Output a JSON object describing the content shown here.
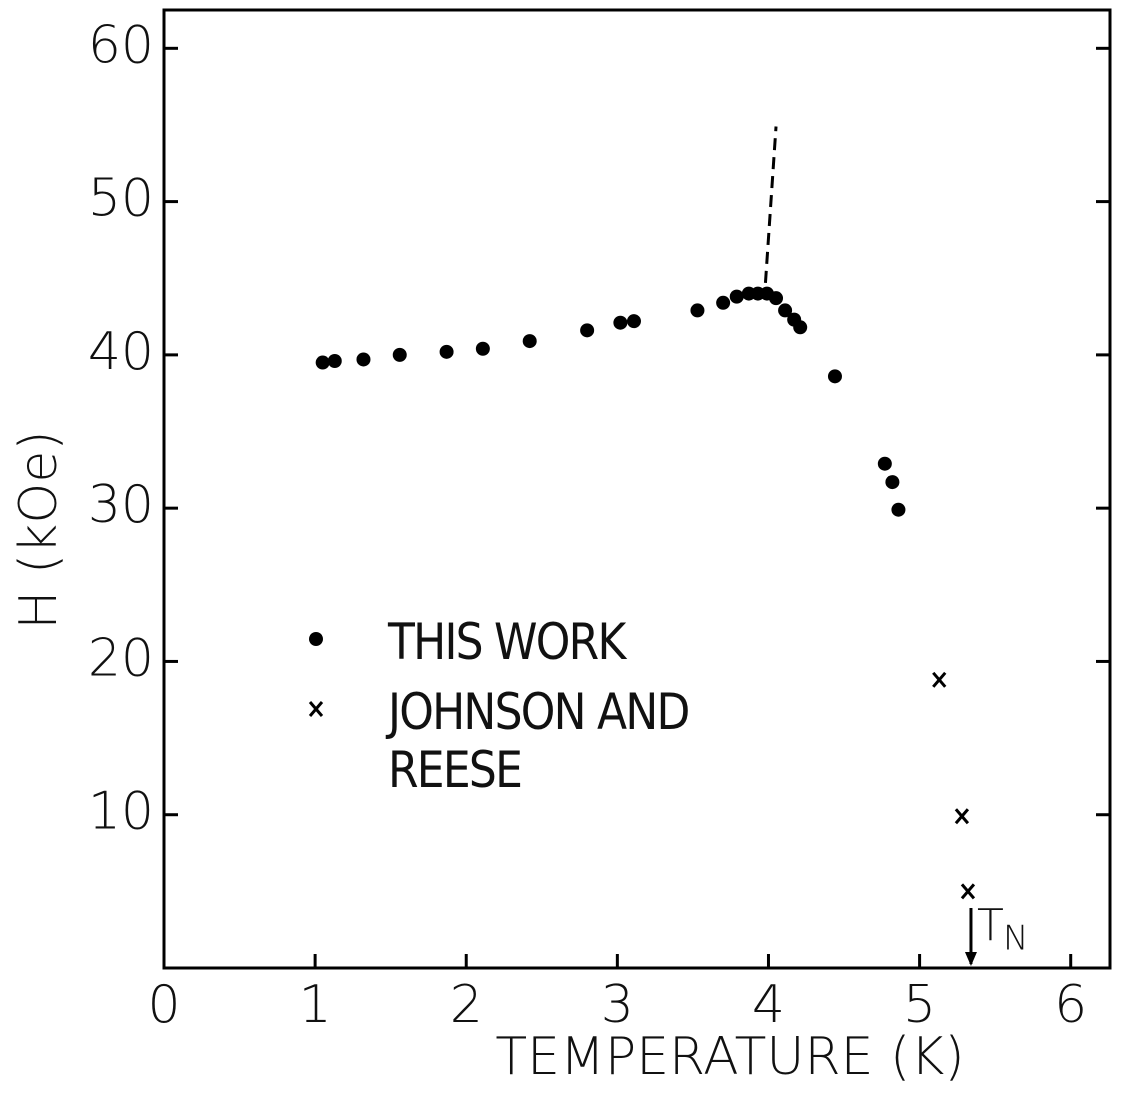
{
  "chart_data": {
    "type": "scatter",
    "x_label": "TEMPERATURE (K)",
    "y_label": "H (kOe)",
    "xlim": [
      0,
      6.26
    ],
    "ylim": [
      0,
      62.5
    ],
    "xticks": [
      0,
      1,
      2,
      3,
      4,
      5,
      6
    ],
    "yticks": [
      10,
      20,
      30,
      40,
      50,
      60
    ],
    "series": [
      {
        "name": "THIS WORK",
        "color": "#000000",
        "marker": "dot",
        "x": [
          1.05,
          1.13,
          1.32,
          1.56,
          1.87,
          2.11,
          2.42,
          2.8,
          3.02,
          3.11,
          3.53,
          3.7,
          3.79,
          3.87,
          3.93,
          3.99,
          4.05,
          4.11,
          4.17,
          4.21,
          4.44,
          4.77,
          4.82,
          4.86
        ],
        "values": [
          39.5,
          39.6,
          39.7,
          40.0,
          40.2,
          40.4,
          40.9,
          41.6,
          42.1,
          42.2,
          42.9,
          43.4,
          43.8,
          44.0,
          44.0,
          44.0,
          43.7,
          42.9,
          42.3,
          41.8,
          38.6,
          32.9,
          31.7,
          29.9
        ]
      },
      {
        "name": "JOHNSON AND REESE",
        "color": "#000000",
        "marker": "x",
        "x": [
          5.13,
          5.28,
          5.32
        ],
        "values": [
          18.8,
          9.9,
          5.0
        ]
      },
      {
        "color": "#000000",
        "marker": "dashed-line",
        "x": [
          3.98,
          4.05
        ],
        "values": [
          44.7,
          54.9
        ]
      }
    ],
    "annotation": {
      "text": "T",
      "subscript": "N",
      "x": 5.34
    },
    "legend": "inside-left"
  }
}
